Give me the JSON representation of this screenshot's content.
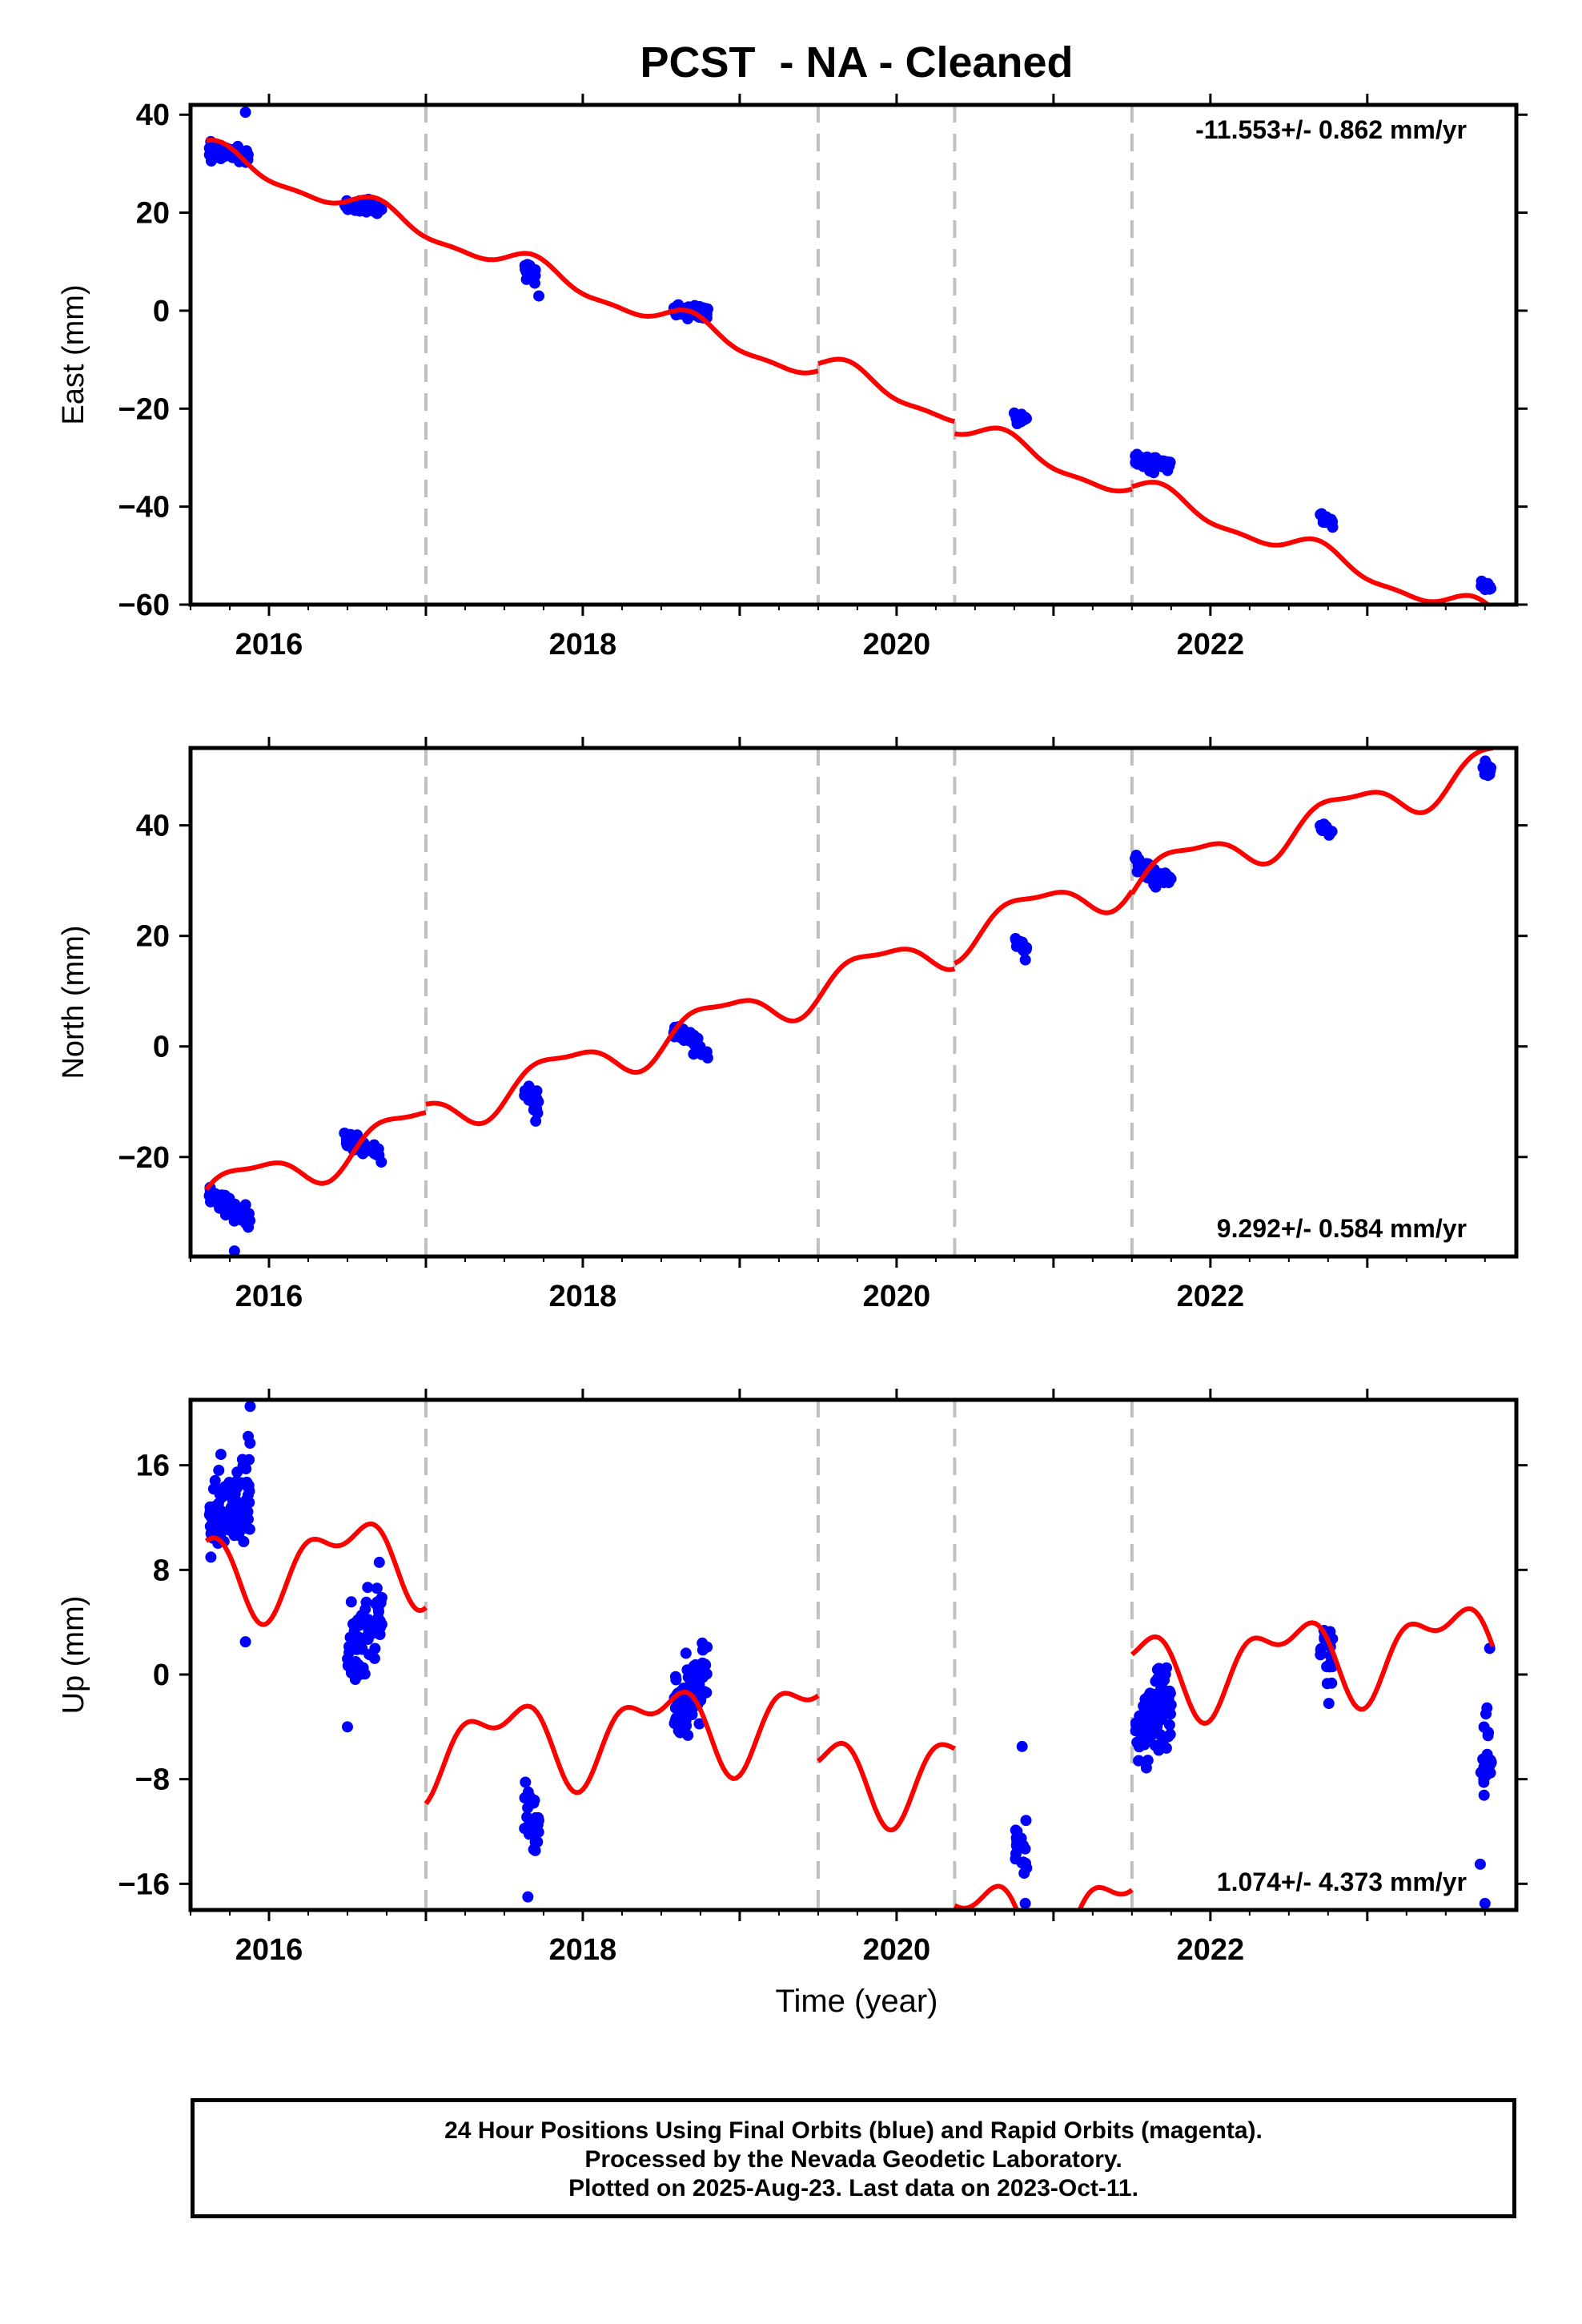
{
  "chart_data": {
    "title": "PCST  - NA - Cleaned",
    "type": "scatter",
    "x_label": "Time (year)",
    "x_ticks": [
      "2016",
      "2018",
      "2020",
      "2022"
    ],
    "xlim": [
      2015.5,
      2023.95
    ],
    "breaks": [
      2017.0,
      2019.5,
      2020.37,
      2021.5
    ],
    "colors": {
      "points": "#0000ff",
      "model": "#ff0000",
      "breaks": "#c0c0c0"
    },
    "panels": [
      {
        "component": "East",
        "ylabel": "East (mm)",
        "ylim": [
          -60,
          42
        ],
        "yticks": [
          40,
          20,
          0,
          -20,
          -40,
          -60
        ],
        "ytick_labels": [
          "40",
          "20",
          "0",
          "−20",
          "−40",
          "−60"
        ],
        "rate_text": "-11.553+/- 0.862 mm/yr",
        "rate_position": "top-right",
        "clusters": [
          {
            "t0": 2015.62,
            "t1": 2015.88,
            "y0": 32.5,
            "y1": 31.5,
            "spread": 1.2,
            "n": 80
          },
          {
            "t0": 2016.48,
            "t1": 2016.72,
            "y0": 21.5,
            "y1": 21.0,
            "spread": 1.1,
            "n": 55
          },
          {
            "t0": 2017.62,
            "t1": 2017.7,
            "y0": 8.5,
            "y1": 7.5,
            "spread": 1.6,
            "n": 18
          },
          {
            "t0": 2018.58,
            "t1": 2018.8,
            "y0": 0.0,
            "y1": -0.5,
            "spread": 1.2,
            "n": 55
          },
          {
            "t0": 2020.75,
            "t1": 2020.83,
            "y0": -21.5,
            "y1": -22.5,
            "spread": 0.8,
            "n": 15
          },
          {
            "t0": 2021.52,
            "t1": 2021.75,
            "y0": -30.5,
            "y1": -31.5,
            "spread": 1.2,
            "n": 55
          },
          {
            "t0": 2022.7,
            "t1": 2022.78,
            "y0": -42.0,
            "y1": -43.5,
            "spread": 0.9,
            "n": 15
          },
          {
            "t0": 2023.72,
            "t1": 2023.8,
            "y0": -55.5,
            "y1": -56.5,
            "spread": 1.0,
            "n": 15
          }
        ],
        "model": {
          "segments": [
            [
              2015.6,
              2017.0
            ],
            [
              2017.0,
              2019.5
            ],
            [
              2019.5,
              2020.37
            ],
            [
              2020.37,
              2021.5
            ],
            [
              2021.5,
              2023.8
            ]
          ],
          "t_ref": 2015.6,
          "intercept": 32.5,
          "rate": -11.553,
          "annual_amp": 2.2,
          "annual_phase": 1.0,
          "semi_amp": 0.8,
          "semi_phase": 0.5,
          "offsets": [
            0,
            0,
            1.5,
            -1.0,
            -0.5
          ]
        },
        "outliers": [
          {
            "t": 2015.85,
            "y": 40.5
          },
          {
            "t": 2017.72,
            "y": 3.0
          }
        ]
      },
      {
        "component": "North",
        "ylabel": "North (mm)",
        "ylim": [
          -38,
          54
        ],
        "yticks": [
          40,
          20,
          0,
          -20
        ],
        "ytick_labels": [
          "40",
          "20",
          "0",
          "−20"
        ],
        "rate_text": "9.292+/- 0.584 mm/yr",
        "rate_position": "bottom-right",
        "clusters": [
          {
            "t0": 2015.62,
            "t1": 2015.88,
            "y0": -26.5,
            "y1": -31.5,
            "spread": 1.4,
            "n": 80
          },
          {
            "t0": 2016.48,
            "t1": 2016.72,
            "y0": -17.0,
            "y1": -19.5,
            "spread": 1.3,
            "n": 55
          },
          {
            "t0": 2017.62,
            "t1": 2017.72,
            "y0": -7.5,
            "y1": -11.0,
            "spread": 1.5,
            "n": 18
          },
          {
            "t0": 2018.58,
            "t1": 2018.8,
            "y0": 3.0,
            "y1": -1.5,
            "spread": 1.2,
            "n": 55
          },
          {
            "t0": 2020.75,
            "t1": 2020.83,
            "y0": 19.0,
            "y1": 17.5,
            "spread": 1.0,
            "n": 15
          },
          {
            "t0": 2021.52,
            "t1": 2021.75,
            "y0": 33.0,
            "y1": 29.5,
            "spread": 1.4,
            "n": 55
          },
          {
            "t0": 2022.7,
            "t1": 2022.78,
            "y0": 40.0,
            "y1": 38.5,
            "spread": 1.0,
            "n": 15
          },
          {
            "t0": 2023.72,
            "t1": 2023.8,
            "y0": 50.5,
            "y1": 49.5,
            "spread": 1.0,
            "n": 15
          }
        ],
        "model": {
          "segments": [
            [
              2015.6,
              2017.0
            ],
            [
              2017.0,
              2019.5
            ],
            [
              2019.5,
              2020.37
            ],
            [
              2020.37,
              2021.5
            ],
            [
              2021.5,
              2023.8
            ]
          ],
          "t_ref": 2015.6,
          "intercept": -27.0,
          "rate": 9.292,
          "annual_amp": 3.6,
          "annual_phase": 0.0,
          "semi_amp": 1.2,
          "semi_phase": 1.2,
          "offsets": [
            0,
            1.5,
            1.5,
            2.5,
            2.0
          ]
        },
        "outliers": [
          {
            "t": 2015.78,
            "y": -37.0
          },
          {
            "t": 2017.7,
            "y": -13.5
          }
        ]
      },
      {
        "component": "Up",
        "ylabel": "Up (mm)",
        "ylim": [
          -18,
          21
        ],
        "yticks": [
          16,
          8,
          0,
          -8,
          -16
        ],
        "ytick_labels": [
          "16",
          "8",
          "0",
          "−8",
          "−16"
        ],
        "rate_text": "1.074+/- 4.373 mm/yr",
        "rate_position": "bottom-right",
        "clusters": [
          {
            "t0": 2015.62,
            "t1": 2015.88,
            "y0": 12.0,
            "y1": 14.0,
            "spread": 2.8,
            "n": 110
          },
          {
            "t0": 2016.5,
            "t1": 2016.72,
            "y0": 1.0,
            "y1": 5.0,
            "spread": 2.5,
            "n": 70
          },
          {
            "t0": 2017.62,
            "t1": 2017.72,
            "y0": -10.0,
            "y1": -12.0,
            "spread": 2.6,
            "n": 30
          },
          {
            "t0": 2018.58,
            "t1": 2018.8,
            "y0": -3.0,
            "y1": 0.0,
            "spread": 2.4,
            "n": 80
          },
          {
            "t0": 2020.75,
            "t1": 2020.83,
            "y0": -13.0,
            "y1": -14.0,
            "spread": 1.5,
            "n": 18
          },
          {
            "t0": 2021.52,
            "t1": 2021.75,
            "y0": -5.0,
            "y1": -2.0,
            "spread": 2.4,
            "n": 90
          },
          {
            "t0": 2022.7,
            "t1": 2022.78,
            "y0": 2.0,
            "y1": 1.0,
            "spread": 2.2,
            "n": 20
          },
          {
            "t0": 2023.72,
            "t1": 2023.8,
            "y0": -7.0,
            "y1": -6.0,
            "spread": 2.6,
            "n": 22
          }
        ],
        "model": {
          "segments": [
            [
              2015.6,
              2017.0
            ],
            [
              2017.0,
              2019.5
            ],
            [
              2019.5,
              2020.37
            ],
            [
              2020.37,
              2021.5
            ],
            [
              2021.5,
              2023.8
            ]
          ],
          "t_ref": 2015.6,
          "intercept": 7.8,
          "rate": 1.074,
          "annual_amp": 2.8,
          "annual_phase": 2.3,
          "semi_amp": 1.6,
          "semi_phase": 0.2,
          "offsets": [
            0,
            -15.0,
            -20.0,
            -32.0,
            -14.0
          ]
        },
        "outliers": [
          {
            "t": 2015.88,
            "y": 20.5
          },
          {
            "t": 2015.85,
            "y": 2.5
          },
          {
            "t": 2016.5,
            "y": -4.0
          },
          {
            "t": 2017.65,
            "y": -17.0
          },
          {
            "t": 2020.8,
            "y": -5.5
          },
          {
            "t": 2020.82,
            "y": -17.5
          },
          {
            "t": 2023.78,
            "y": 2.0
          },
          {
            "t": 2023.75,
            "y": -17.5
          },
          {
            "t": 2023.72,
            "y": -14.5
          }
        ]
      }
    ]
  },
  "footer": {
    "line1": "24 Hour Positions Using Final Orbits (blue) and Rapid Orbits (magenta).",
    "line2": "Processed by the Nevada Geodetic Laboratory.",
    "line3": "Plotted on 2025-Aug-23. Last data on 2023-Oct-11."
  }
}
